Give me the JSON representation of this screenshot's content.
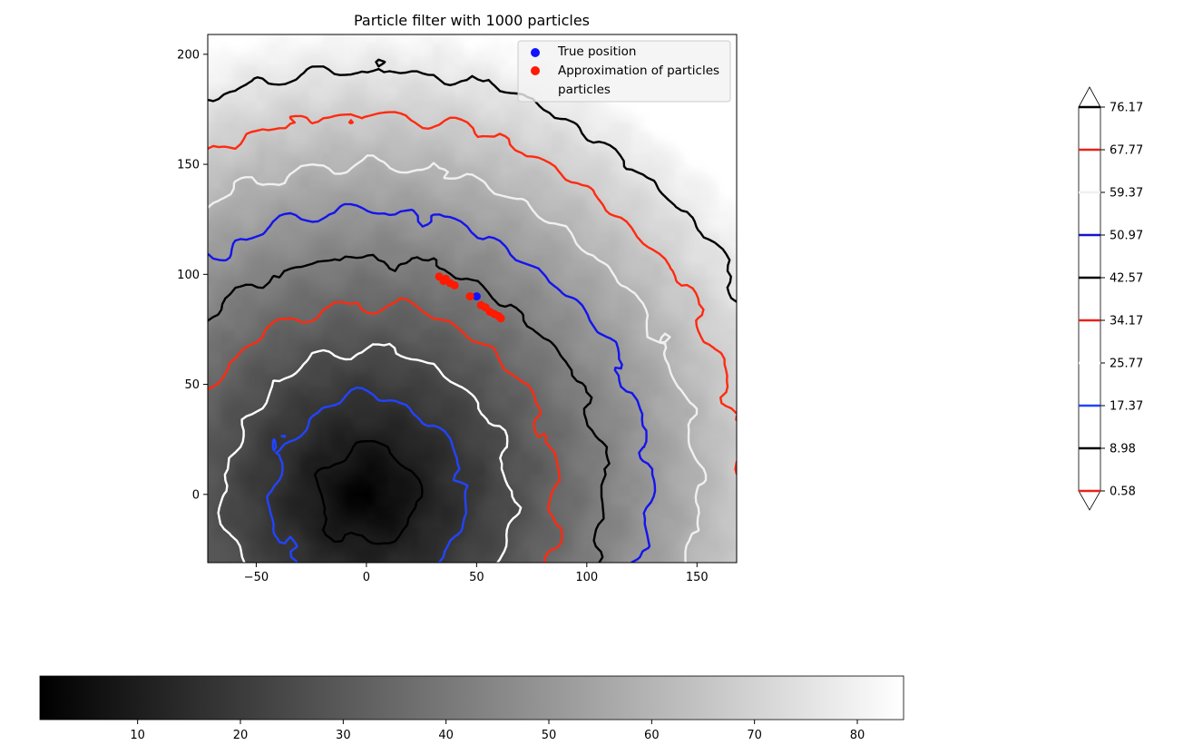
{
  "chart_data": {
    "type": "heatmap",
    "title": "Particle filter with 1000 particles",
    "xlim": [
      -72,
      168
    ],
    "ylim": [
      -31,
      209
    ],
    "xticks": [
      -50,
      0,
      50,
      100,
      150
    ],
    "yticks": [
      0,
      50,
      100,
      150,
      200
    ],
    "grid": false,
    "heatmap": {
      "colormap": "gray",
      "peak_value": 84.5,
      "minimum_at": [
        0,
        0
      ],
      "description_value": "field increases with distance from origin"
    },
    "contour_levels": [
      {
        "value": 8.98,
        "color": "#000000"
      },
      {
        "value": 17.37,
        "color": "#2244ff"
      },
      {
        "value": 25.77,
        "color": "#ffffff"
      },
      {
        "value": 34.17,
        "color": "#ff2a10"
      },
      {
        "value": 42.57,
        "color": "#000000"
      },
      {
        "value": 50.97,
        "color": "#1414ee"
      },
      {
        "value": 59.37,
        "color": "#f0f0f0"
      },
      {
        "value": 67.77,
        "color": "#ff2a10"
      },
      {
        "value": 76.17,
        "color": "#000000"
      }
    ],
    "contourbar": {
      "tick_labels": [
        "0.58",
        "8.98",
        "17.37",
        "25.77",
        "34.17",
        "42.57",
        "50.97",
        "59.37",
        "67.77",
        "76.17"
      ],
      "colors": [
        "#e8221a",
        "#000000",
        "#2244ff",
        "#ffffff",
        "#e8221a",
        "#000000",
        "#1414cc",
        "#f0f0f0",
        "#e8221a",
        "#000000"
      ]
    },
    "colorbar": {
      "ticks": [
        10,
        20,
        30,
        40,
        50,
        60,
        70,
        80
      ],
      "range": [
        0.5,
        84.5
      ]
    },
    "series": [
      {
        "name": "True position",
        "type": "scatter",
        "color": "#1212ff",
        "points": [
          [
            50,
            90
          ]
        ]
      },
      {
        "name": "Approximation of particles\nparticles",
        "type": "scatter",
        "color": "#ff1a00",
        "points": [
          [
            33,
            99
          ],
          [
            35,
            97
          ],
          [
            36,
            98
          ],
          [
            38,
            96
          ],
          [
            40,
            95
          ],
          [
            47,
            90
          ],
          [
            52,
            86
          ],
          [
            54,
            85
          ],
          [
            56,
            83
          ],
          [
            58,
            82
          ],
          [
            60,
            81
          ],
          [
            61,
            80
          ]
        ]
      }
    ],
    "legend": {
      "position": "top-right",
      "entries": [
        {
          "label": "True position",
          "color": "#1212ff"
        },
        {
          "label_line1": "Approximation of particles",
          "label_line2": "particles",
          "color": "#ff1a00"
        }
      ]
    }
  }
}
